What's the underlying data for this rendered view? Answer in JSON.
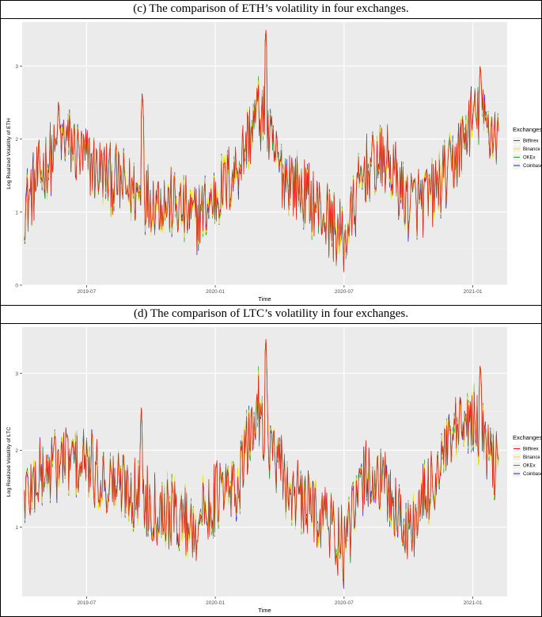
{
  "chart_data": [
    {
      "type": "line",
      "title": "(c) The comparison of ETH’s volatility in four exchanges.",
      "xlabel": "Time",
      "ylabel": "Log Realized Volatility of ETH",
      "legend_title": "Exchanges",
      "legend_position": "right",
      "x_ticks": [
        "2019-07",
        "2020-01",
        "2020-07",
        "2021-01"
      ],
      "x_range": [
        "2019-04",
        "2021-02"
      ],
      "y_ticks": [
        "0",
        "1",
        "2",
        "3"
      ],
      "ylim": [
        0,
        3.6
      ],
      "grid": true,
      "background": "#ebebeb",
      "series": [
        {
          "name": "Bitfinex",
          "color": "#e41a1c"
        },
        {
          "name": "Binance",
          "color": "#e8e800"
        },
        {
          "name": "OKEx",
          "color": "#2ca02c"
        },
        {
          "name": "Coinbase",
          "color": "#1f1fd6"
        }
      ],
      "x": [
        "2019-04",
        "2019-05",
        "2019-06",
        "2019-07",
        "2019-08",
        "2019-09",
        "2019-10",
        "2019-11",
        "2019-12",
        "2020-01",
        "2020-02",
        "2020-03",
        "2020-04",
        "2020-05",
        "2020-06",
        "2020-07",
        "2020-08",
        "2020-09",
        "2020-10",
        "2020-11",
        "2020-12",
        "2021-01",
        "2021-02"
      ],
      "values": [
        1.0,
        1.6,
        2.0,
        1.7,
        1.5,
        1.3,
        1.2,
        1.1,
        0.9,
        1.2,
        1.6,
        2.4,
        1.6,
        1.3,
        1.0,
        0.6,
        1.6,
        1.7,
        1.1,
        1.2,
        1.6,
        2.3,
        2.1
      ]
    },
    {
      "type": "line",
      "title": "(d) The comparison of LTC’s volatility in four exchanges.",
      "xlabel": "Time",
      "ylabel": "Log Realized Volatility of LTC",
      "legend_title": "Exchanges",
      "legend_position": "right",
      "x_ticks": [
        "2019-07",
        "2020-01",
        "2020-07",
        "2021-01"
      ],
      "x_range": [
        "2019-04",
        "2021-02"
      ],
      "y_ticks": [
        "1",
        "2",
        "3"
      ],
      "ylim": [
        0.1,
        3.6
      ],
      "grid": true,
      "background": "#ebebeb",
      "series": [
        {
          "name": "Bitfinex",
          "color": "#e41a1c"
        },
        {
          "name": "Binance",
          "color": "#e8e800"
        },
        {
          "name": "OKEx",
          "color": "#2ca02c"
        },
        {
          "name": "Coinbase",
          "color": "#1f1fd6"
        }
      ],
      "x": [
        "2019-04",
        "2019-05",
        "2019-06",
        "2019-07",
        "2019-08",
        "2019-09",
        "2019-10",
        "2019-11",
        "2019-12",
        "2020-01",
        "2020-02",
        "2020-03",
        "2020-04",
        "2020-05",
        "2020-06",
        "2020-07",
        "2020-08",
        "2020-09",
        "2020-10",
        "2020-11",
        "2020-12",
        "2021-01",
        "2021-02"
      ],
      "values": [
        1.4,
        1.7,
        1.9,
        1.8,
        1.6,
        1.5,
        1.3,
        1.2,
        1.0,
        1.4,
        1.5,
        2.6,
        1.7,
        1.3,
        1.2,
        0.7,
        1.7,
        1.5,
        0.9,
        1.5,
        2.1,
        2.4,
        1.8
      ]
    }
  ]
}
